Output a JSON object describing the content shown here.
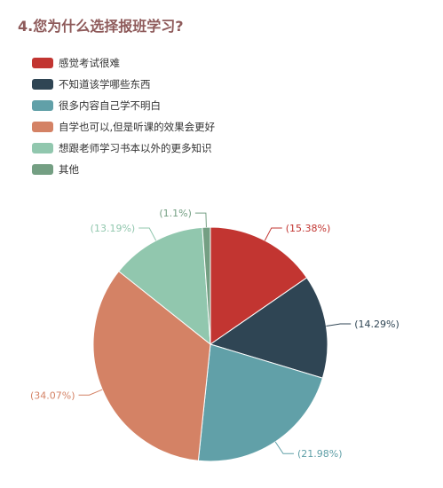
{
  "title": "4.您为什么选择报班学习?",
  "chart_data": {
    "type": "pie",
    "legend_position": "top-left",
    "start_angle_deg": -90,
    "direction": "clockwise",
    "slices": [
      {
        "name": "感觉考试很难",
        "value": 15.38,
        "label": "(15.38%)",
        "color": "#c23531"
      },
      {
        "name": "不知道该学哪些东西",
        "value": 14.29,
        "label": "(14.29%)",
        "color": "#2f4554"
      },
      {
        "name": "很多内容自己学不明白",
        "value": 21.98,
        "label": "(21.98%)",
        "color": "#61a0a8"
      },
      {
        "name": "自学也可以,但是听课的效果会更好",
        "value": 34.07,
        "label": "(34.07%)",
        "color": "#d48265"
      },
      {
        "name": "想跟老师学习书本以外的更多知识",
        "value": 13.19,
        "label": "(13.19%)",
        "color": "#91c7ae"
      },
      {
        "name": "其他",
        "value": 1.1,
        "label": "(1.1%)",
        "color": "#749f83"
      }
    ]
  }
}
